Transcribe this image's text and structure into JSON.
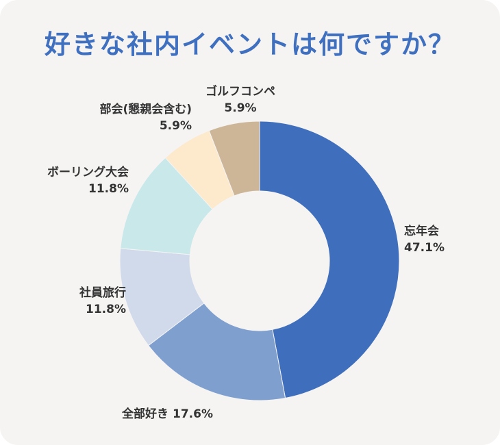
{
  "title": "好きな社内イベントは何ですか？",
  "chart_data": {
    "type": "pie",
    "donut": true,
    "start": "top",
    "direction": "clockwise",
    "slices": [
      {
        "label": "忘年会",
        "value": 47.1,
        "value_text": "47.1%",
        "color": "#3f6fbc"
      },
      {
        "label": "全部好き",
        "value": 17.6,
        "value_text": "17.6%",
        "color": "#7f9fcf"
      },
      {
        "label": "社員旅行",
        "value": 11.8,
        "value_text": "11.8%",
        "color": "#d0daea"
      },
      {
        "label": "ボーリング大会",
        "value": 11.8,
        "value_text": "11.8%",
        "color": "#c8e8ea"
      },
      {
        "label": "部会(懇親会含む)",
        "value": 5.9,
        "value_text": "5.9%",
        "color": "#fde9cc"
      },
      {
        "label": "ゴルフコンペ",
        "value": 5.9,
        "value_text": "5.9%",
        "color": "#cdb698"
      }
    ]
  }
}
